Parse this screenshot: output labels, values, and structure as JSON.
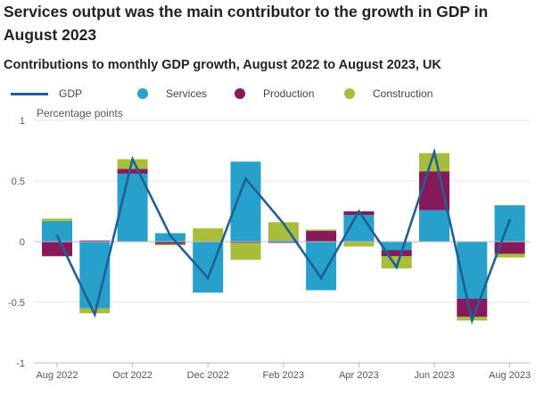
{
  "title": "Services output was the main contributor to the growth in GDP in August 2023",
  "subtitle": "Contributions to monthly GDP growth, August 2022 to August 2023, UK",
  "legend": {
    "gdp": "GDP",
    "services": "Services",
    "production": "Production",
    "construction": "Construction"
  },
  "colors": {
    "gdp": "#206095",
    "services": "#27a0cc",
    "production": "#871a5b",
    "construction": "#a8bd3a",
    "grid": "#e6e6e6",
    "zero_line": "#bbbbbb"
  },
  "chart_data": {
    "type": "bar",
    "stacked": true,
    "combo_line_series": "GDP",
    "title": "Contributions to monthly GDP growth, August 2022 to August 2023, UK",
    "ylabel": "Percentage points",
    "xlabel": "",
    "ylim": [
      -1,
      1
    ],
    "yticks": [
      1,
      0.5,
      0,
      -0.5,
      -1
    ],
    "ytick_labels": [
      "1",
      "0.5",
      "0",
      "-0.5",
      "-1"
    ],
    "categories": [
      "Aug 2022",
      "Sep 2022",
      "Oct 2022",
      "Nov 2022",
      "Dec 2022",
      "Jan 2023",
      "Feb 2023",
      "Mar 2023",
      "Apr 2023",
      "May 2023",
      "Jun 2023",
      "Jul 2023",
      "Aug 2023"
    ],
    "x_tick_labels": [
      "Aug 2022",
      "",
      "Oct 2022",
      "",
      "Dec 2022",
      "",
      "Feb 2023",
      "",
      "Apr 2023",
      "",
      "Jun 2023",
      "",
      "Aug 2023"
    ],
    "grid": true,
    "legend_position": "top",
    "series": [
      {
        "name": "Services",
        "color": "#27a0cc",
        "values": [
          0.17,
          -0.55,
          0.56,
          0.07,
          -0.42,
          0.66,
          0.01,
          -0.4,
          0.22,
          -0.07,
          0.26,
          -0.47,
          0.3
        ]
      },
      {
        "name": "Production",
        "color": "#871a5b",
        "values": [
          -0.12,
          0.01,
          0.04,
          -0.02,
          0.0,
          -0.01,
          -0.01,
          0.09,
          0.03,
          -0.05,
          0.32,
          -0.15,
          -0.1
        ]
      },
      {
        "name": "Construction",
        "color": "#a8bd3a",
        "values": [
          0.02,
          -0.04,
          0.08,
          -0.01,
          0.11,
          -0.14,
          0.15,
          0.01,
          -0.04,
          -0.1,
          0.15,
          -0.03,
          -0.03
        ]
      },
      {
        "name": "GDP",
        "color": "#206095",
        "type": "line",
        "values": [
          0.05,
          -0.6,
          0.68,
          0.05,
          -0.3,
          0.52,
          0.15,
          -0.3,
          0.25,
          -0.21,
          0.74,
          -0.65,
          0.18
        ]
      }
    ]
  }
}
